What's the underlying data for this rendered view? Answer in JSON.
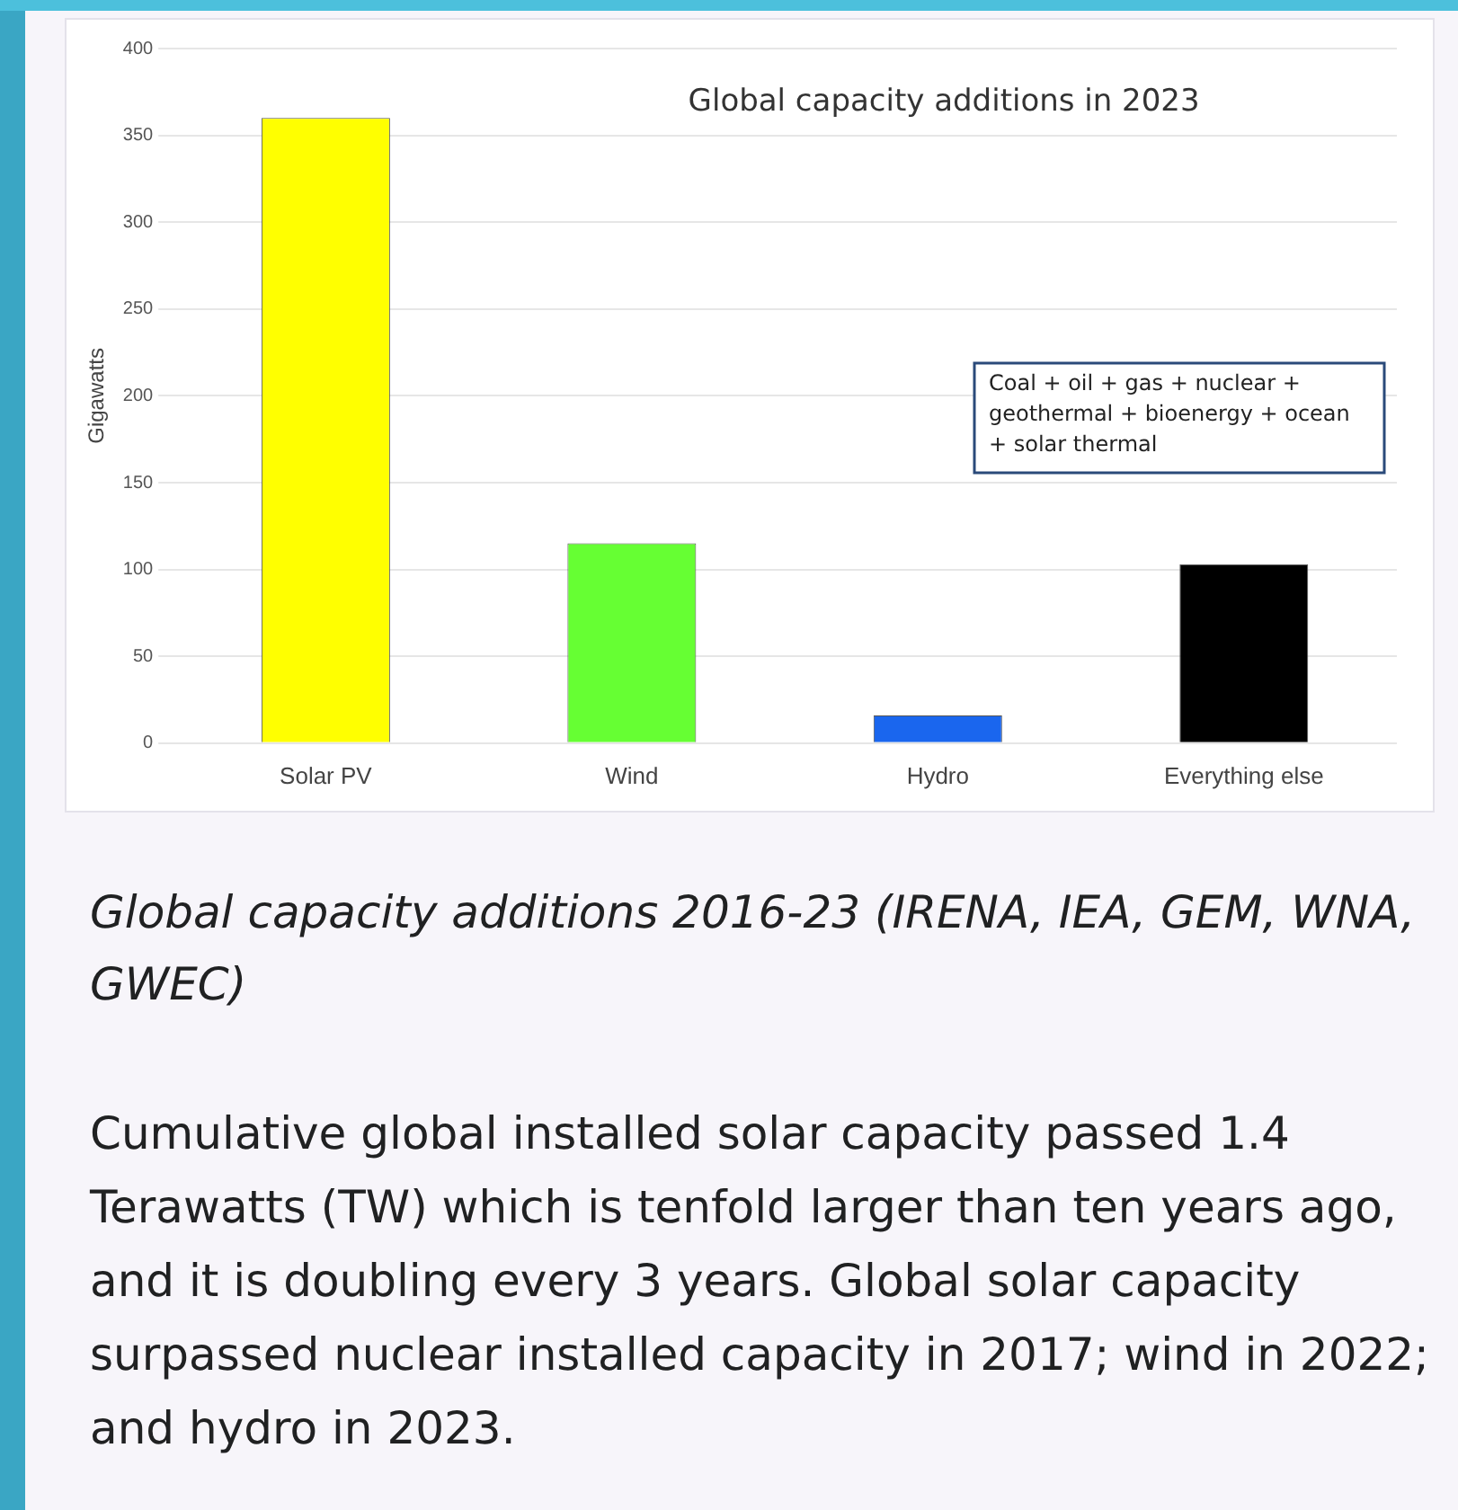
{
  "chart_data": {
    "type": "bar",
    "title": "Global capacity additions in 2023",
    "ylabel": "Gigawatts",
    "categories": [
      "Solar PV",
      "Wind",
      "Hydro",
      "Everything else"
    ],
    "values": [
      360,
      115,
      16,
      103
    ],
    "colors": [
      "#ffff00",
      "#66ff33",
      "#1a66ee",
      "#000000"
    ],
    "ylim": [
      0,
      400
    ],
    "yticks": [
      0,
      50,
      100,
      150,
      200,
      250,
      300,
      350,
      400
    ],
    "grid": "y",
    "legend": false,
    "annotations": [
      "Coal + oil + gas + nuclear + geothermal + bioenergy + ocean + solar thermal",
      "Global capacity additions 2016-23 (IRENA, IEA, GEM, WNA, GWEC)",
      "Cumulative global installed solar capacity passed 1.4 Terawatts (TW) which is tenfold larger than ten years ago, and it is doubling every 3 years. Global solar capacity surpassed nuclear installed capacity in 2017; wind in 2022; and hydro in 2023."
    ]
  }
}
